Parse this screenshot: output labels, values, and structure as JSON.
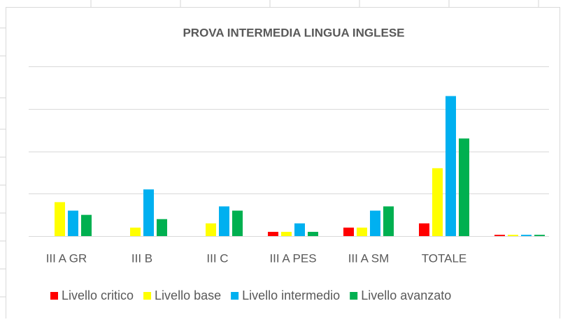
{
  "chart_data": {
    "type": "bar",
    "title": "PROVA INTERMEDIA LINGUA INGLESE",
    "categories": [
      "III A GR",
      "III B",
      "III C",
      "III A PES",
      "III A SM",
      "TOTALE",
      null
    ],
    "series": [
      {
        "name": "Livello critico",
        "color": "#ff0000",
        "values": [
          0,
          0,
          0,
          1,
          2,
          3,
          0.3
        ]
      },
      {
        "name": "Livello base",
        "color": "#ffff00",
        "values": [
          8,
          2,
          3,
          1,
          2,
          16,
          0.3
        ]
      },
      {
        "name": "Livello intermedio",
        "color": "#00b0f0",
        "values": [
          6,
          11,
          7,
          3,
          6,
          33,
          0.3
        ]
      },
      {
        "name": "Livello avanzato",
        "color": "#00b050",
        "values": [
          5,
          4,
          6,
          1,
          7,
          23,
          0.3
        ]
      }
    ],
    "ylim": [
      0,
      40
    ],
    "yticks": [
      0,
      10,
      20,
      30,
      40
    ],
    "grid": true,
    "legend": "bottom"
  }
}
